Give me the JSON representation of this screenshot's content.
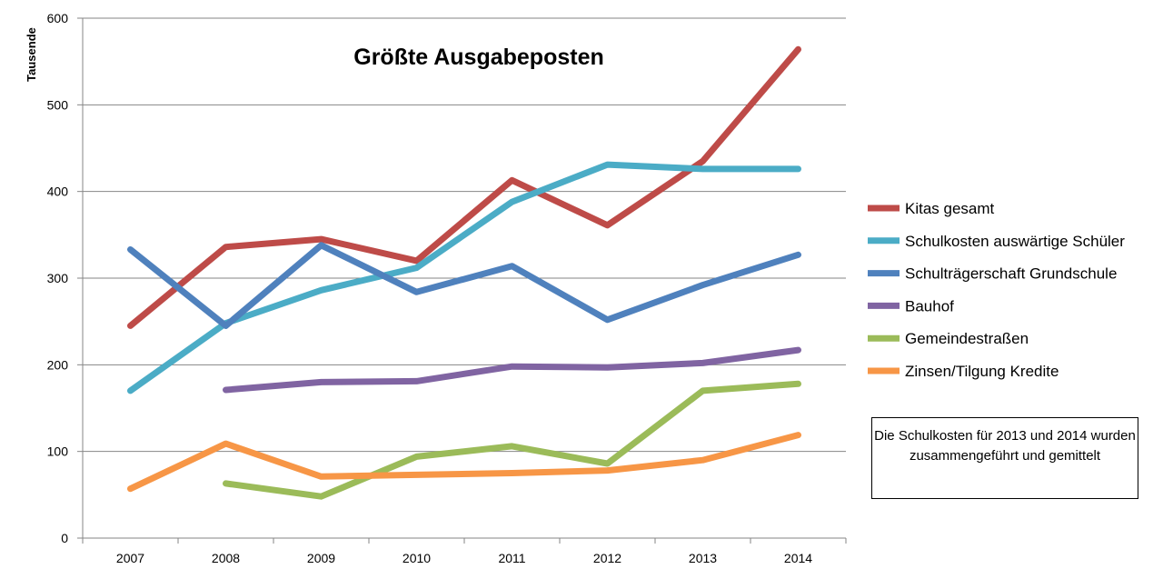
{
  "chart_data": {
    "type": "line",
    "title": "Größte Ausgabeposten",
    "ylabel": "Tausende",
    "xlabel": "",
    "ylim": [
      0,
      600
    ],
    "yticks": [
      0,
      100,
      200,
      300,
      400,
      500,
      600
    ],
    "categories": [
      "2007",
      "2008",
      "2009",
      "2010",
      "2011",
      "2012",
      "2013",
      "2014"
    ],
    "grid": true,
    "legend_position": "right",
    "series": [
      {
        "name": "Kitas gesamt",
        "color": "#be4b48",
        "values": [
          245,
          336,
          345,
          320,
          413,
          361,
          435,
          564
        ]
      },
      {
        "name": "Schulkosten auswärtige Schüler",
        "color": "#4bacc6",
        "values": [
          170,
          248,
          286,
          312,
          388,
          431,
          426,
          426
        ]
      },
      {
        "name": "Schulträgerschaft Grundschule",
        "color": "#4f81bd",
        "values": [
          333,
          245,
          338,
          284,
          314,
          252,
          292,
          327
        ]
      },
      {
        "name": "Bauhof",
        "color": "#8064a2",
        "values": [
          null,
          171,
          180,
          181,
          198,
          197,
          202,
          217
        ]
      },
      {
        "name": "Gemeindestraßen",
        "color": "#9bbb59",
        "values": [
          null,
          63,
          48,
          94,
          106,
          86,
          170,
          178
        ]
      },
      {
        "name": "Zinsen/Tilgung Kredite",
        "color": "#f79646",
        "values": [
          57,
          109,
          71,
          73,
          75,
          78,
          90,
          119
        ]
      }
    ],
    "annotation": "Die Schulkosten für 2013 und 2014 wurden zusammengeführt und gemittelt"
  }
}
